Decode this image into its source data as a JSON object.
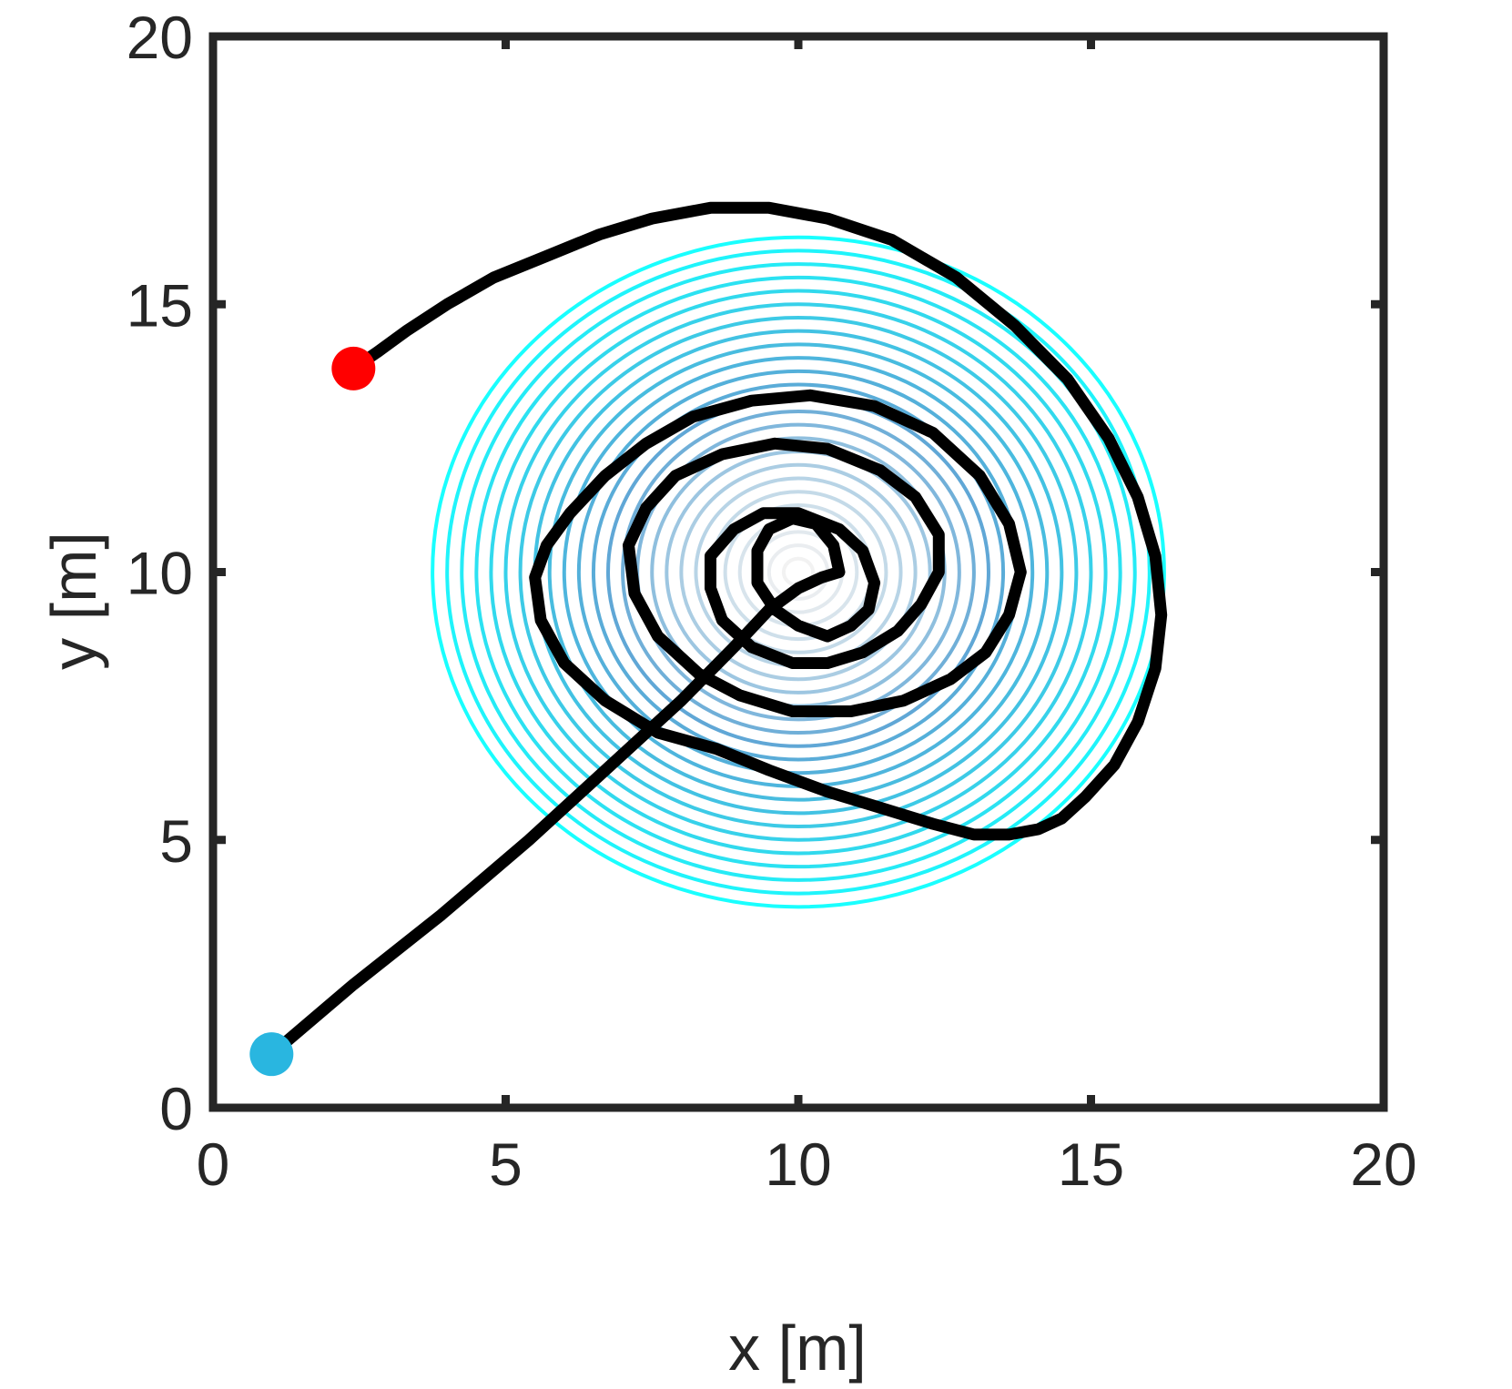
{
  "chart_data": {
    "type": "line",
    "title": "",
    "xlabel": "x [m]",
    "ylabel": "y [m]",
    "xlim": [
      0,
      20
    ],
    "ylim": [
      0,
      20
    ],
    "xticks": [
      0,
      5,
      10,
      15,
      20
    ],
    "yticks": [
      0,
      5,
      10,
      15,
      20
    ],
    "xtick_labels": [
      "0",
      "5",
      "10",
      "15",
      "20"
    ],
    "ytick_labels": [
      "0",
      "5",
      "10",
      "15",
      "20"
    ],
    "grid": false,
    "legend": null,
    "colors": {
      "axes": "#262626",
      "trajectory": "#000000",
      "start_marker": "#29b6e0",
      "end_marker": "#ff0000",
      "contour_outer": "#d9d9d9",
      "contour_mid": "#0072bd",
      "contour_inner": "#00ffff"
    },
    "contours": {
      "center": [
        10,
        10
      ],
      "radius_x": [
        0.25,
        0.5,
        0.75,
        1.0,
        1.25,
        1.5,
        1.75,
        2.0,
        2.25,
        2.5,
        2.75,
        3.0,
        3.25,
        3.5,
        3.75,
        4.0,
        4.25,
        4.5,
        4.75,
        5.0,
        5.25,
        5.5,
        5.75,
        6.0,
        6.25
      ],
      "aspect_y": 1.0
    },
    "trajectory": {
      "x": [
        1.0,
        2.4,
        3.9,
        5.4,
        6.8,
        8.0,
        8.9,
        9.5,
        10.0,
        10.4,
        10.7,
        10.6,
        10.3,
        9.9,
        9.5,
        9.3,
        9.3,
        9.6,
        10.0,
        10.5,
        10.9,
        11.2,
        11.3,
        11.1,
        10.7,
        10.0,
        9.4,
        8.9,
        8.5,
        8.5,
        8.7,
        9.2,
        9.9,
        10.5,
        11.1,
        11.7,
        12.1,
        12.4,
        12.4,
        12.0,
        11.4,
        10.5,
        9.6,
        8.7,
        7.9,
        7.4,
        7.1,
        7.2,
        7.6,
        8.3,
        9.0,
        9.9,
        10.9,
        11.8,
        12.6,
        13.2,
        13.6,
        13.8,
        13.6,
        13.1,
        12.3,
        11.3,
        10.2,
        9.2,
        8.2,
        7.4,
        6.7,
        6.1,
        5.7,
        5.5,
        5.6,
        6.0,
        6.7,
        7.6,
        8.6,
        9.5,
        10.5,
        11.4,
        12.3,
        13.0,
        13.6,
        14.1,
        14.5,
        14.9,
        15.4,
        15.8,
        16.1,
        16.2,
        16.1,
        15.8,
        15.3,
        14.6,
        13.7,
        12.7,
        11.6,
        10.5,
        9.5,
        8.5,
        7.5,
        6.6,
        5.7,
        4.8,
        4.0,
        3.3,
        2.8,
        2.4
      ],
      "y": [
        1.0,
        2.3,
        3.6,
        5.0,
        6.4,
        7.6,
        8.6,
        9.3,
        9.7,
        9.9,
        10.0,
        10.5,
        10.9,
        11.0,
        10.8,
        10.4,
        9.8,
        9.3,
        9.0,
        8.8,
        9.0,
        9.3,
        9.8,
        10.4,
        10.8,
        11.1,
        11.1,
        10.8,
        10.3,
        9.7,
        9.1,
        8.6,
        8.3,
        8.3,
        8.5,
        8.9,
        9.4,
        10.0,
        10.7,
        11.4,
        11.9,
        12.3,
        12.4,
        12.2,
        11.8,
        11.2,
        10.5,
        9.6,
        8.8,
        8.1,
        7.7,
        7.4,
        7.4,
        7.6,
        8.0,
        8.5,
        9.2,
        10.0,
        10.9,
        11.8,
        12.6,
        13.1,
        13.3,
        13.2,
        12.9,
        12.4,
        11.8,
        11.1,
        10.5,
        9.9,
        9.1,
        8.3,
        7.6,
        7.0,
        6.7,
        6.3,
        5.9,
        5.6,
        5.3,
        5.1,
        5.1,
        5.2,
        5.4,
        5.8,
        6.4,
        7.2,
        8.2,
        9.2,
        10.3,
        11.4,
        12.5,
        13.6,
        14.6,
        15.5,
        16.2,
        16.6,
        16.8,
        16.8,
        16.6,
        16.3,
        15.9,
        15.5,
        15.0,
        14.5,
        14.1,
        13.8
      ]
    },
    "start": {
      "x": 1.0,
      "y": 1.0
    },
    "end": {
      "x": 2.4,
      "y": 13.8
    }
  }
}
